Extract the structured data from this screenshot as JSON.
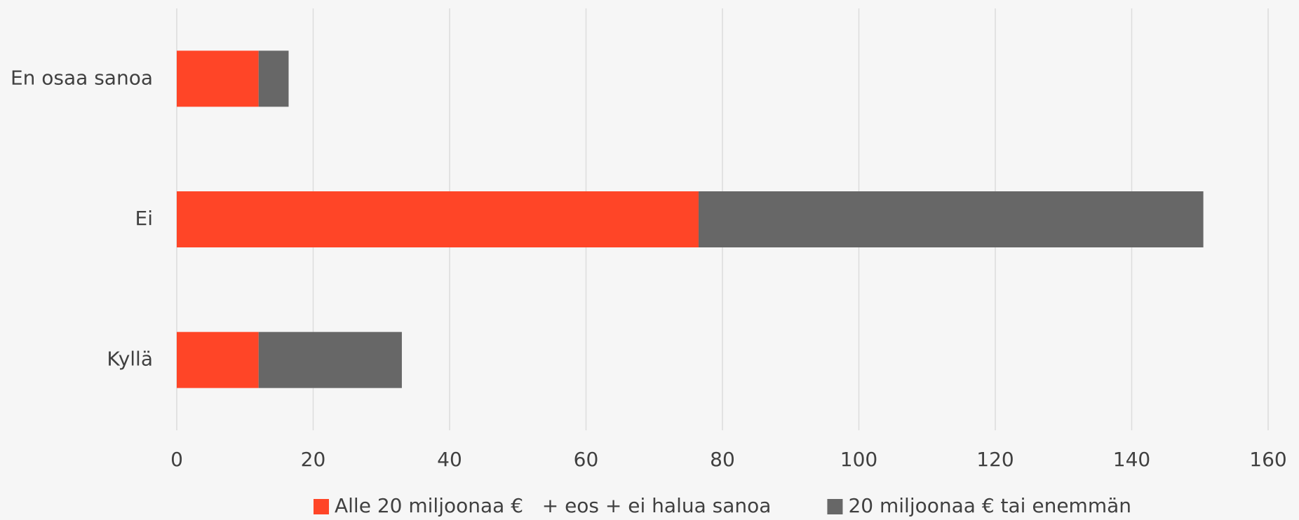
{
  "chart_data": {
    "type": "stacked-bar-horizontal",
    "categories": [
      "En osaa sanoa",
      "Ei",
      "Kyllä"
    ],
    "series": [
      {
        "name": "Alle 20 miljoonaa €   + eos + ei halua sanoa",
        "color": "#ff4527",
        "values": [
          12,
          76.5,
          12
        ]
      },
      {
        "name": "20 miljoonaa € tai enemmän",
        "color": "#676767",
        "values": [
          4.4,
          74,
          21
        ]
      }
    ],
    "xlim": [
      0,
      160
    ],
    "xticks": [
      0,
      20,
      40,
      60,
      80,
      100,
      120,
      140,
      160
    ],
    "grid": true,
    "legend": "bottom"
  }
}
